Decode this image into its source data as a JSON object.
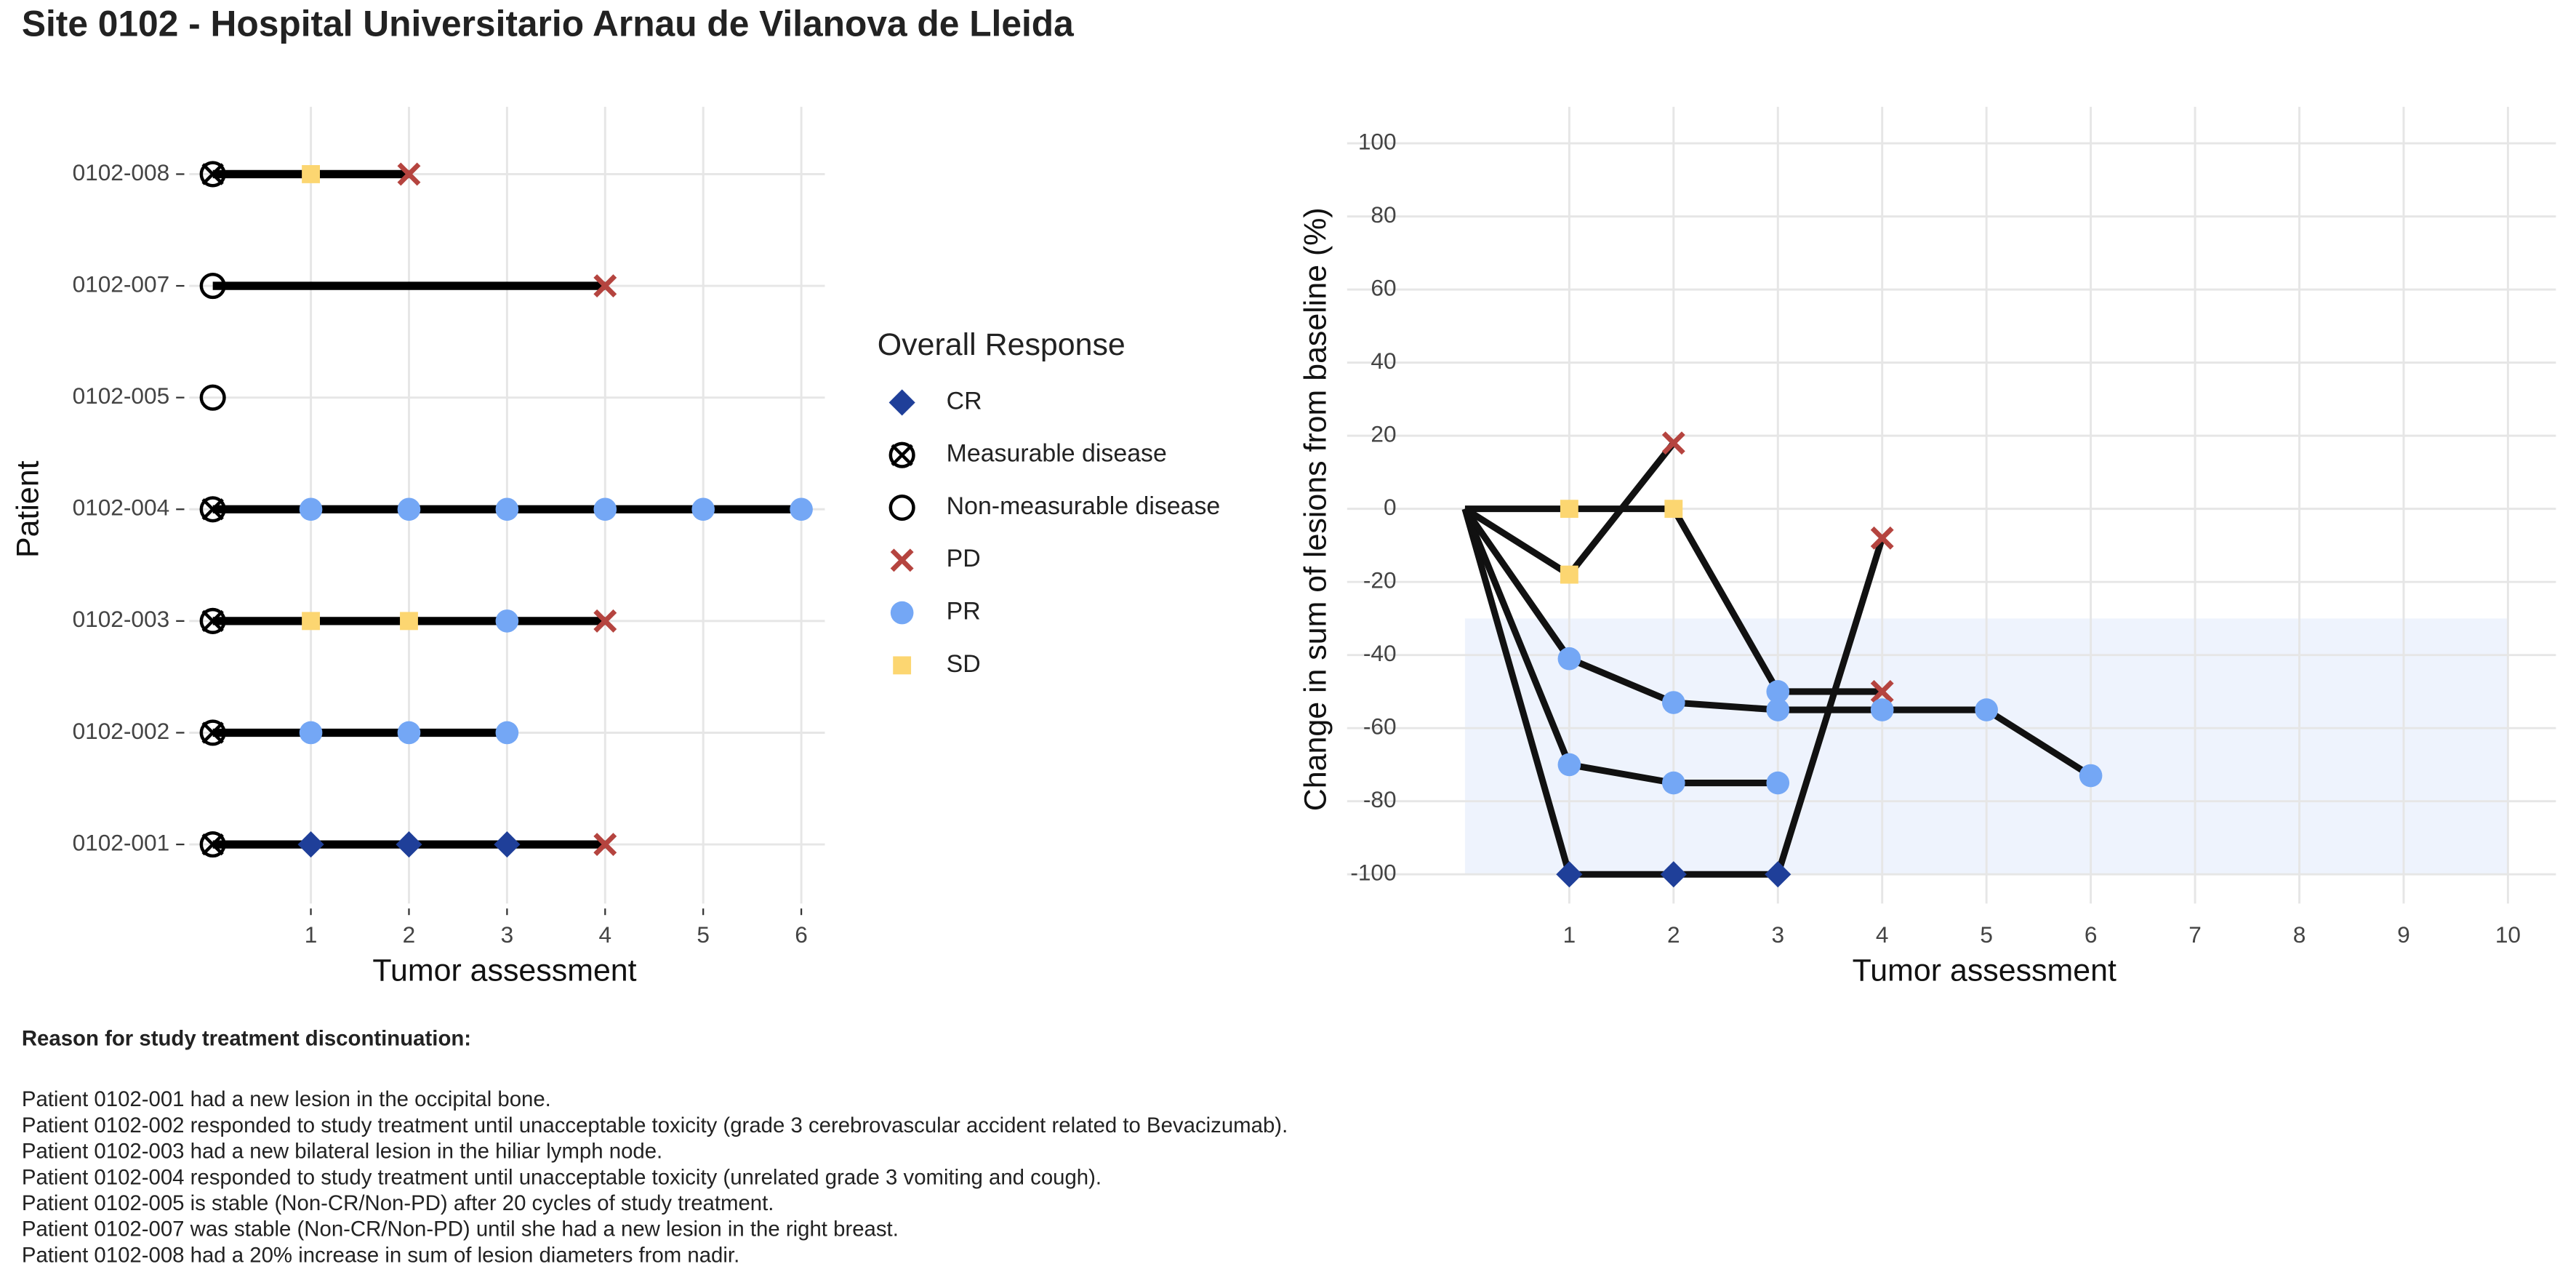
{
  "title": "Site 0102 - Hospital Universitario Arnau de Vilanova de Lleida",
  "chart_data": [
    {
      "type": "swimmer",
      "xlabel": "Tumor assessment",
      "ylabel": "Patient",
      "categories": [
        "0102-001",
        "0102-002",
        "0102-003",
        "0102-004",
        "0102-005",
        "0102-007",
        "0102-008"
      ],
      "xlim": [
        -0.24,
        6.24
      ],
      "xticks": [
        1,
        2,
        3,
        4,
        5,
        6
      ],
      "grid": true,
      "line_color": "#000000",
      "rows": [
        {
          "x": [
            0,
            1,
            2,
            3,
            4
          ],
          "responses": [
            "Measurable disease",
            "CR",
            "CR",
            "CR",
            "PD"
          ]
        },
        {
          "x": [
            0,
            1,
            2,
            3
          ],
          "responses": [
            "Measurable disease",
            "PR",
            "PR",
            "PR"
          ]
        },
        {
          "x": [
            0,
            1,
            2,
            3,
            4
          ],
          "responses": [
            "Measurable disease",
            "SD",
            "SD",
            "PR",
            "PD"
          ]
        },
        {
          "x": [
            0,
            1,
            2,
            3,
            4,
            5,
            6
          ],
          "responses": [
            "Measurable disease",
            "PR",
            "PR",
            "PR",
            "PR",
            "PR",
            "PR"
          ]
        },
        {
          "x": [
            0
          ],
          "responses": [
            "Non-measurable disease"
          ]
        },
        {
          "x": [
            0,
            4
          ],
          "responses": [
            "Non-measurable disease",
            "PD"
          ]
        },
        {
          "x": [
            0,
            1,
            2
          ],
          "responses": [
            "Measurable disease",
            "SD",
            "PD"
          ]
        }
      ],
      "legend": {
        "title": "Overall Response",
        "position": "right",
        "items": [
          {
            "name": "CR",
            "color": "#1f3f99",
            "shape": "diamond"
          },
          {
            "name": "Measurable disease",
            "color": "#000000",
            "shape": "circle-x"
          },
          {
            "name": "Non-measurable disease",
            "color": "#000000",
            "shape": "circle-open"
          },
          {
            "name": "PD",
            "color": "#b5443f",
            "shape": "x"
          },
          {
            "name": "PR",
            "color": "#74a7f5",
            "shape": "circle"
          },
          {
            "name": "SD",
            "color": "#fcd671",
            "shape": "square"
          }
        ]
      }
    },
    {
      "type": "line",
      "xlabel": "Tumor assessment",
      "ylabel": "Change in sum of lesions from baseline (%)",
      "xlim": [
        -1.13,
        10.46
      ],
      "xticks": [
        1,
        2,
        3,
        4,
        5,
        6,
        7,
        8,
        9,
        10
      ],
      "ylim": [
        -108,
        110
      ],
      "yticks": [
        -100,
        -80,
        -60,
        -40,
        -20,
        0,
        20,
        40,
        60,
        80,
        100
      ],
      "grid": true,
      "line_color": "#111111",
      "band": {
        "x": [
          0,
          10
        ],
        "y": [
          -100,
          -30
        ],
        "color": "#eef3fd"
      },
      "series": [
        {
          "x": [
            0,
            1,
            2,
            3,
            4
          ],
          "values": [
            0,
            -100,
            -100,
            -100,
            -8
          ],
          "responses": [
            null,
            "CR",
            "CR",
            "CR",
            "PD"
          ]
        },
        {
          "x": [
            0,
            1,
            2,
            3
          ],
          "values": [
            0,
            -70,
            -75,
            -75
          ],
          "responses": [
            null,
            "PR",
            "PR",
            "PR"
          ]
        },
        {
          "x": [
            0,
            1,
            2,
            3,
            4
          ],
          "values": [
            0,
            0,
            0,
            -50,
            -50
          ],
          "responses": [
            null,
            "SD",
            "SD",
            "PR",
            "PD"
          ]
        },
        {
          "x": [
            0,
            1,
            2,
            3,
            4,
            5,
            6
          ],
          "values": [
            0,
            -41,
            -53,
            -55,
            -55,
            -55,
            -73
          ],
          "responses": [
            null,
            "PR",
            "PR",
            "PR",
            "PR",
            "PR",
            "PR"
          ]
        },
        {
          "x": [
            0,
            1,
            2
          ],
          "values": [
            0,
            -18,
            18
          ],
          "responses": [
            null,
            "SD",
            "PD"
          ]
        }
      ]
    }
  ],
  "notes": {
    "heading": "Reason for study treatment discontinuation:",
    "lines": [
      "Patient 0102-001 had a new lesion in the occipital bone.",
      "Patient 0102-002 responded to study treatment until unacceptable toxicity (grade 3 cerebrovascular accident related to Bevacizumab).",
      "Patient 0102-003 had a new bilateral lesion in the hiliar lymph node.",
      "Patient 0102-004 responded to study treatment until unacceptable toxicity (unrelated grade 3 vomiting and cough).",
      "Patient 0102-005 is stable (Non-CR/Non-PD) after 20 cycles of study treatment.",
      "Patient 0102-007 was stable (Non-CR/Non-PD) until she had a new lesion in the right breast.",
      "Patient 0102-008 had a 20% increase in sum of lesion diameters from nadir."
    ]
  }
}
